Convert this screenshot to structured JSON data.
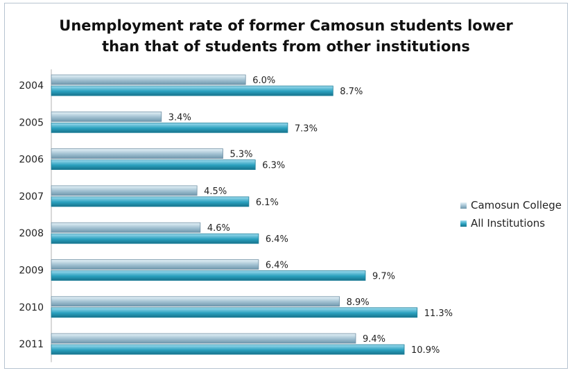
{
  "chart_data": {
    "type": "bar",
    "orientation": "horizontal",
    "title": "Unemployment rate of former Camosun students lower than that of students from other institutions",
    "title_lines": [
      "Unemployment rate of former Camosun students lower",
      "than that of students from other institutions"
    ],
    "categories": [
      "2004",
      "2005",
      "2006",
      "2007",
      "2008",
      "2009",
      "2010",
      "2011"
    ],
    "series": [
      {
        "name": "Camosun College",
        "values": [
          6.0,
          3.4,
          5.3,
          4.5,
          4.6,
          6.4,
          8.9,
          9.4
        ],
        "color": "#8fb4c8"
      },
      {
        "name": "All Institutions",
        "values": [
          8.7,
          7.3,
          6.3,
          6.1,
          6.4,
          9.7,
          11.3,
          10.9
        ],
        "color": "#2aa0be"
      }
    ],
    "value_suffix": "%",
    "xlim": [
      0,
      12
    ],
    "grid": false,
    "legend_position": "right"
  }
}
